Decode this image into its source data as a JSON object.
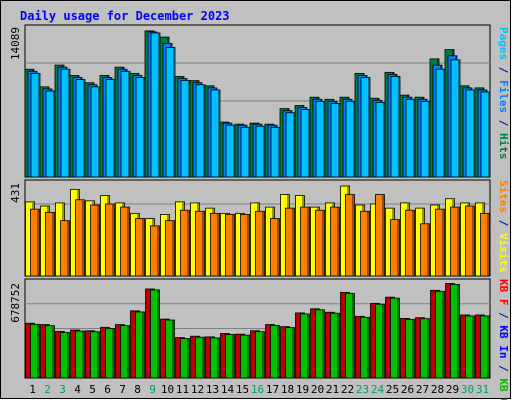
{
  "chart_data": {
    "type": "bar",
    "title": "Daily usage for December 2023",
    "categories": [
      "1",
      "2",
      "3",
      "4",
      "5",
      "6",
      "7",
      "8",
      "9",
      "10",
      "11",
      "12",
      "13",
      "14",
      "15",
      "16",
      "17",
      "18",
      "19",
      "20",
      "21",
      "22",
      "23",
      "24",
      "25",
      "26",
      "27",
      "28",
      "29",
      "30",
      "31"
    ],
    "weekend_days": [
      "2",
      "3",
      "9",
      "16",
      "23",
      "24",
      "30",
      "31"
    ],
    "panels": [
      {
        "id": "hits",
        "max_label": "14089",
        "ymax": 14089,
        "side_labels": [
          {
            "text": "Pages",
            "color": "#00C0FF"
          },
          {
            "text": " / ",
            "color": "#0000A0"
          },
          {
            "text": "Files",
            "color": "#0080FF"
          },
          {
            "text": " / ",
            "color": "#0000A0"
          },
          {
            "text": "Hits",
            "color": "#008040"
          }
        ],
        "series": [
          {
            "name": "Hits",
            "color": "#008040",
            "values": [
              10400,
              8700,
              10800,
              9800,
              9100,
              9800,
              10600,
              10000,
              14100,
              13500,
              9700,
              9300,
              8800,
              5300,
              5100,
              5200,
              5100,
              6600,
              6900,
              7700,
              7500,
              7700,
              10000,
              7600,
              10100,
              7900,
              7700,
              11400,
              12300,
              8800,
              8600
            ]
          },
          {
            "name": "Files",
            "color": "#0080FF",
            "values": [
              10200,
              8500,
              10600,
              9600,
              8900,
              9600,
              10400,
              9800,
              14000,
              12900,
              9500,
              9100,
              8600,
              5200,
              5000,
              5100,
              5000,
              6400,
              6700,
              7500,
              7300,
              7500,
              9800,
              7400,
              9900,
              7700,
              7500,
              10800,
              11700,
              8600,
              8400
            ]
          },
          {
            "name": "Pages",
            "color": "#00C0FF",
            "values": [
              10000,
              8300,
              10400,
              9400,
              8700,
              9400,
              10200,
              9600,
              13900,
              12500,
              9300,
              8900,
              8400,
              5000,
              4800,
              4900,
              4800,
              6200,
              6500,
              7300,
              7100,
              7300,
              9600,
              7200,
              9700,
              7500,
              7300,
              10400,
              11300,
              8400,
              8200
            ]
          }
        ]
      },
      {
        "id": "visits",
        "max_label": "431",
        "ymax": 431,
        "side_labels": [
          {
            "text": "Sites",
            "color": "#FF8000"
          },
          {
            "text": " / ",
            "color": "#0000A0"
          },
          {
            "text": "Visits",
            "color": "#FFFF00"
          }
        ],
        "series": [
          {
            "name": "Visits",
            "color": "#FFFF00",
            "values": [
              355,
              335,
              350,
              415,
              360,
              385,
              350,
              300,
              275,
              295,
              355,
              350,
              325,
              300,
              300,
              350,
              330,
              390,
              385,
              330,
              350,
              431,
              340,
              345,
              325,
              350,
              325,
              340,
              370,
              350,
              350
            ]
          },
          {
            "name": "Sites",
            "color": "#FF8000",
            "values": [
              320,
              305,
              265,
              365,
              340,
              345,
              330,
              275,
              240,
              265,
              315,
              310,
              300,
              295,
              295,
              310,
              275,
              325,
              330,
              315,
              330,
              390,
              310,
              390,
              270,
              315,
              250,
              320,
              330,
              335,
              300
            ]
          }
        ]
      },
      {
        "id": "kbytes",
        "max_label": "678752",
        "ymax": 678752,
        "side_labels": [
          {
            "text": "KB F",
            "color": "#FF0000"
          },
          {
            "text": " / ",
            "color": "#0000A0"
          },
          {
            "text": "KB In",
            "color": "#0000FF"
          },
          {
            "text": " / ",
            "color": "#0000A0"
          },
          {
            "text": "KB Out",
            "color": "#00C000"
          }
        ],
        "series": [
          {
            "name": "KB F",
            "color": "#C00000",
            "values": [
              400000,
              390000,
              340000,
              350000,
              345000,
              370000,
              390000,
              490000,
              650000,
              430000,
              295000,
              305000,
              300000,
              325000,
              320000,
              345000,
              390000,
              375000,
              475000,
              505000,
              480000,
              625000,
              450000,
              545000,
              590000,
              435000,
              440000,
              640000,
              690000,
              460000,
              460000
            ]
          },
          {
            "name": "KB Out",
            "color": "#00C000",
            "values": [
              392000,
              382000,
              332000,
              343000,
              338000,
              362000,
              382000,
              482000,
              643000,
              423000,
              288000,
              298000,
              293000,
              318000,
              313000,
              338000,
              383000,
              368000,
              468000,
              498000,
              473000,
              618000,
              443000,
              538000,
              583000,
              428000,
              433000,
              633000,
              683000,
              453000,
              453000
            ]
          }
        ]
      }
    ]
  }
}
